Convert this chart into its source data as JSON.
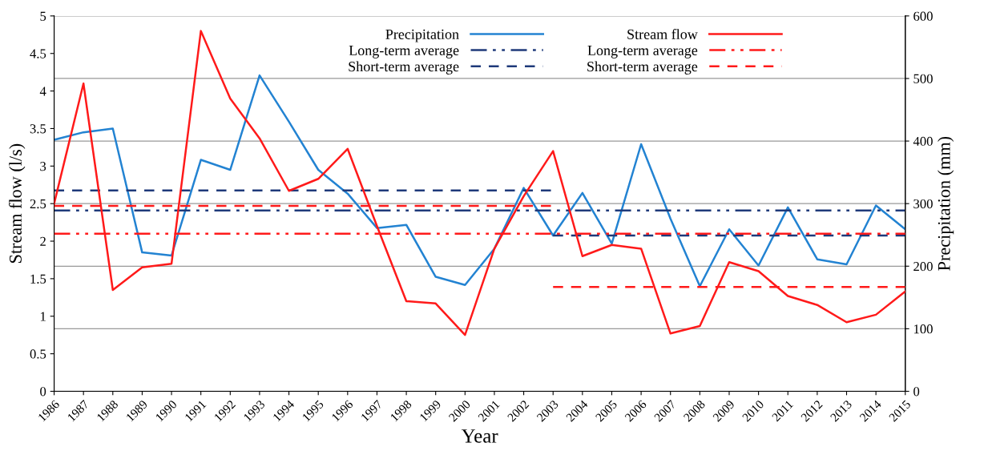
{
  "chart_data": {
    "type": "line",
    "xlabel": "Year",
    "ylabel": "Stream flow (l/s)",
    "y2label": "Precipitation (mm)",
    "x": [
      1986,
      1987,
      1988,
      1989,
      1990,
      1991,
      1992,
      1993,
      1994,
      1995,
      1996,
      1997,
      1998,
      1999,
      2000,
      2001,
      2002,
      2003,
      2004,
      2005,
      2006,
      2007,
      2008,
      2009,
      2010,
      2011,
      2012,
      2013,
      2014,
      2015
    ],
    "series": [
      {
        "name": "Precipitation",
        "color": "#2383d2",
        "axis": "y2",
        "line_style": "solid",
        "values": [
          402,
          414,
          420,
          222,
          217,
          370,
          354,
          505,
          431,
          354,
          316,
          261,
          266,
          183,
          170,
          228,
          325,
          249,
          317,
          236,
          395,
          276,
          168,
          259,
          201,
          294,
          211,
          203,
          297,
          259
        ]
      },
      {
        "name": "Long-term average",
        "color": "#1f3a7a",
        "axis": "y2",
        "line_style": "dashdot",
        "x": [
          1986,
          2015
        ],
        "values": [
          289,
          289
        ]
      },
      {
        "name": "Short-term average",
        "color": "#1f3a7a",
        "axis": "y2",
        "line_style": "dashed",
        "x": [
          1986,
          2003
        ],
        "values": [
          321,
          321
        ]
      },
      {
        "color": "#1f3a7a",
        "axis": "y2",
        "line_style": "dashed",
        "x": [
          2003,
          2015
        ],
        "values": [
          249,
          249
        ]
      },
      {
        "name": "Stream flow",
        "color": "#ff1a1a",
        "axis": "y",
        "line_style": "solid",
        "values": [
          2.5,
          4.1,
          1.35,
          1.65,
          1.7,
          4.8,
          3.9,
          3.37,
          2.67,
          2.83,
          3.23,
          2.2,
          1.2,
          1.17,
          0.75,
          1.9,
          2.6,
          3.2,
          1.8,
          1.95,
          1.9,
          0.77,
          0.87,
          1.72,
          1.6,
          1.27,
          1.15,
          0.92,
          1.02,
          1.33
        ]
      },
      {
        "name": "Long-term average",
        "color": "#ff1a1a",
        "axis": "y",
        "line_style": "dashdot",
        "x": [
          1986,
          2015
        ],
        "values": [
          2.1,
          2.1
        ]
      },
      {
        "name": "Short-term average",
        "color": "#ff1a1a",
        "axis": "y",
        "line_style": "dashed",
        "x": [
          1986,
          2003
        ],
        "values": [
          2.47,
          2.47
        ]
      },
      {
        "color": "#ff1a1a",
        "axis": "y",
        "line_style": "dashed",
        "x": [
          2003,
          2015
        ],
        "values": [
          1.39,
          1.39
        ]
      }
    ],
    "xlim": [
      1986,
      2015
    ],
    "xticks": [
      1986,
      1987,
      1988,
      1989,
      1990,
      1991,
      1992,
      1993,
      1994,
      1995,
      1996,
      1997,
      1998,
      1999,
      2000,
      2001,
      2002,
      2003,
      2004,
      2005,
      2006,
      2007,
      2008,
      2009,
      2010,
      2011,
      2012,
      2013,
      2014,
      2015
    ],
    "ylim": [
      0,
      5
    ],
    "yticks": [
      0,
      0.5,
      1,
      1.5,
      2,
      2.5,
      3,
      3.5,
      4,
      4.5,
      5
    ],
    "y2lim": [
      0,
      600
    ],
    "y2ticks": [
      0,
      100,
      200,
      300,
      400,
      500,
      600
    ],
    "grid": "y2",
    "legend": "top",
    "marker": "none"
  }
}
